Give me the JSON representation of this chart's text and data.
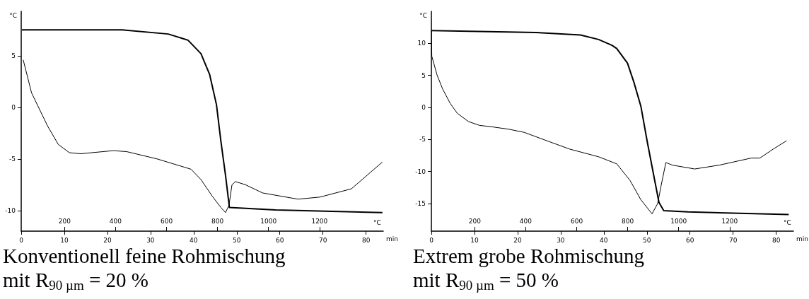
{
  "chart_data": [
    {
      "type": "line",
      "title": "Konventionell feine Rohmischung",
      "subtitle": "mit R$_{90 µm}$ = 20 %",
      "xlabel": "min",
      "x2label": "°C",
      "ylabel": "°C",
      "xlim": [
        0,
        84
      ],
      "xticks": [
        0,
        10,
        20,
        30,
        40,
        50,
        60,
        70,
        80
      ],
      "x2lim": [
        30,
        1450
      ],
      "x2ticks": [
        200,
        400,
        600,
        800,
        1000,
        1200
      ],
      "ylim": [
        -12,
        9.3
      ],
      "yticks": [
        -10,
        -5,
        0,
        5
      ],
      "grid": false,
      "marker": "none",
      "series": [
        {
          "color": "#000000",
          "x": [
            0.15,
            23.4,
            34.1,
            38.7,
            41.7,
            43.7,
            45.3,
            46.3,
            47.4,
            48.3,
            59,
            83.8
          ],
          "values": [
            7.5,
            7.5,
            7.1,
            6.5,
            5.2,
            3.2,
            0.25,
            -3.2,
            -6.6,
            -9.7,
            -9.95,
            -10.2
          ]
        },
        {
          "color": "#000000",
          "x": [
            0.46,
            2.4,
            6.1,
            8.6,
            11.2,
            13.8,
            21.4,
            24.5,
            31.5,
            39.4,
            41.7,
            44.3,
            46.3,
            47.4,
            48.2,
            48.9,
            49.7,
            52,
            56,
            64.2,
            69.3,
            76.6,
            83.8
          ],
          "values": [
            4.6,
            1.4,
            -1.8,
            -3.6,
            -4.4,
            -4.5,
            -4.2,
            -4.3,
            -5.0,
            -6.0,
            -7.0,
            -8.6,
            -9.7,
            -10.2,
            -9.5,
            -7.5,
            -7.2,
            -7.5,
            -8.3,
            -8.9,
            -8.7,
            -7.9,
            -5.3
          ]
        }
      ]
    },
    {
      "type": "line",
      "title": "Extrem grobe Rohmischung",
      "subtitle": "mit R$_{90 µm}$ = 50 %",
      "xlabel": "min",
      "x2label": "°C",
      "ylabel": "°C",
      "xlim": [
        0,
        84
      ],
      "xticks": [
        0,
        10,
        20,
        30,
        40,
        50,
        60,
        70,
        80
      ],
      "x2lim": [
        30,
        1450
      ],
      "x2ticks": [
        200,
        400,
        600,
        800,
        1000,
        1200
      ],
      "ylim": [
        -19.3,
        15
      ],
      "yticks": [
        -15,
        -10,
        -5,
        0,
        5,
        10
      ],
      "grid": false,
      "marker": "none",
      "series": [
        {
          "color": "#000000",
          "x": [
            0,
            24.3,
            34.6,
            38.8,
            41.9,
            43,
            45.5,
            47,
            48.6,
            50.1,
            51.7,
            52.8,
            53.9,
            59.5,
            82.9
          ],
          "values": [
            12.0,
            11.7,
            11.3,
            10.6,
            9.7,
            9.2,
            6.9,
            3.9,
            0.2,
            -5.4,
            -11.0,
            -14.8,
            -16.1,
            -16.3,
            -16.7
          ]
        },
        {
          "color": "#000000",
          "x": [
            0,
            0.1,
            1.3,
            2.6,
            4.4,
            6.0,
            8.6,
            11.2,
            13.8,
            18.0,
            21.6,
            26.8,
            32.1,
            38.8,
            43.0,
            46.1,
            48.6,
            51.2,
            52.5,
            53.3,
            54.4,
            55.9,
            61.1,
            66.8,
            74.2,
            76.2,
            79.3,
            82.4
          ],
          "values": [
            12.0,
            8.0,
            5.1,
            2.9,
            0.6,
            -0.9,
            -2.2,
            -2.8,
            -3.0,
            -3.4,
            -3.9,
            -5.2,
            -6.5,
            -7.7,
            -8.8,
            -11.4,
            -14.4,
            -16.6,
            -15.0,
            -12.2,
            -8.6,
            -9.0,
            -9.6,
            -9.0,
            -7.9,
            -7.9,
            -6.5,
            -5.2
          ]
        }
      ]
    }
  ]
}
